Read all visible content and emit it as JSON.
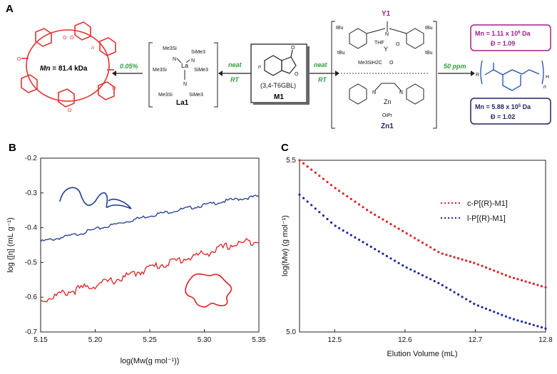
{
  "panel_A": {
    "letter": "A",
    "left_product": {
      "mn_label": "Mn",
      "mn_value": "= 81.4 kDa",
      "repeat_n": "n"
    },
    "arrow_left_pct": "0.05%",
    "catalyst_la1": {
      "label": "La1",
      "metal": "La",
      "groups": [
        "Me3Si",
        "SiMe3",
        "Me3Si",
        "SiMe3",
        "Me3Si",
        "SiMe3"
      ],
      "atom_n": "N"
    },
    "neat": "neat",
    "rt": "RT",
    "monomer": {
      "label": "M1",
      "name": "(3,4-T6GBL)",
      "n": "n",
      "o1": "O",
      "o2": "O"
    },
    "catalyst_y1": {
      "label": "Y1",
      "groups": [
        "tBu",
        "tBu",
        "tBu",
        "tBu"
      ],
      "thf": "THF",
      "metal": "Y",
      "ch2": "Me3SiH2C",
      "o": "O",
      "n": "N"
    },
    "catalyst_zn1": {
      "label": "Zn1",
      "metal": "Zn",
      "oipr": "OiPr",
      "n": "N"
    },
    "arrow_right_ppm": "50 ppm",
    "linear_product": {
      "mn_box1": "Mn = 1.11 x 10",
      "mn_box1_exp": "6",
      "mn_box1_unit": "Da",
      "d_box1": "Đ = 1.09",
      "mn_box2": "Mn = 5.88 x 10",
      "mn_box2_exp": "5",
      "mn_box2_unit": "Da",
      "d_box2": "Đ = 1.02",
      "r": "R",
      "h": "H",
      "n": "n"
    }
  },
  "panel_B": {
    "letter": "B",
    "ylabel": "log ([η] (mL g⁻¹)",
    "xlabel": "log(Mw(g mol⁻¹))",
    "colors": {
      "linear": "#1f3a93",
      "cyclic": "#e02020"
    }
  },
  "panel_C": {
    "letter": "C",
    "ylabel": "log(Mw) (g mol⁻¹)",
    "xlabel": "Elution Volume (mL)",
    "legend": [
      "c-P[(R)-M1]",
      "l-P[(R)-M1]"
    ],
    "colors": {
      "cyclic": "#e02020",
      "linear": "#1a2aa0"
    }
  },
  "chart_data": [
    {
      "type": "line",
      "panel": "B",
      "xlabel": "log(Mw(g mol⁻¹))",
      "ylabel": "log ([η] (mL g⁻¹)",
      "xlim": [
        5.15,
        5.35
      ],
      "ylim": [
        -0.7,
        -0.2
      ],
      "xticks": [
        "5.15",
        "5.20",
        "5.25",
        "5.30",
        "5.35"
      ],
      "yticks": [
        "-0.2",
        "-0.3",
        "-0.4",
        "-0.5",
        "-0.6",
        "-0.7"
      ],
      "series": [
        {
          "x": [
            5.15,
            5.175,
            5.2,
            5.225,
            5.25,
            5.275,
            5.3,
            5.325,
            5.35
          ],
          "y": [
            -0.44,
            -0.425,
            -0.405,
            -0.385,
            -0.365,
            -0.35,
            -0.335,
            -0.32,
            -0.31
          ],
          "color": "#1f3a93"
        },
        {
          "x": [
            5.15,
            5.175,
            5.2,
            5.225,
            5.25,
            5.275,
            5.3,
            5.325,
            5.35
          ],
          "y": [
            -0.61,
            -0.585,
            -0.565,
            -0.545,
            -0.515,
            -0.495,
            -0.475,
            -0.45,
            -0.435
          ],
          "color": "#e02020"
        }
      ],
      "grid": false
    },
    {
      "type": "scatter",
      "panel": "C",
      "xlabel": "Elution Volume (mL)",
      "ylabel": "log(Mw) (g mol⁻¹)",
      "xlim": [
        12.45,
        12.8
      ],
      "ylim": [
        5.0,
        5.5
      ],
      "xticks": [
        "12.5",
        "12.6",
        "12.7",
        "12.8"
      ],
      "yticks": [
        "5.0",
        "5.5"
      ],
      "legend_position": "upper-right",
      "series": [
        {
          "name": "c-P[(R)-M1]",
          "color": "#e02020",
          "x": [
            12.45,
            12.5,
            12.55,
            12.6,
            12.65,
            12.7,
            12.75,
            12.8
          ],
          "y": [
            5.5,
            5.42,
            5.35,
            5.29,
            5.23,
            5.2,
            5.16,
            5.13
          ]
        },
        {
          "name": "l-P[(R)-M1]",
          "color": "#1a2aa0",
          "x": [
            12.45,
            12.5,
            12.55,
            12.6,
            12.65,
            12.7,
            12.75,
            12.8
          ],
          "y": [
            5.4,
            5.31,
            5.25,
            5.19,
            5.14,
            5.08,
            5.04,
            5.01
          ]
        }
      ],
      "grid": false
    }
  ]
}
